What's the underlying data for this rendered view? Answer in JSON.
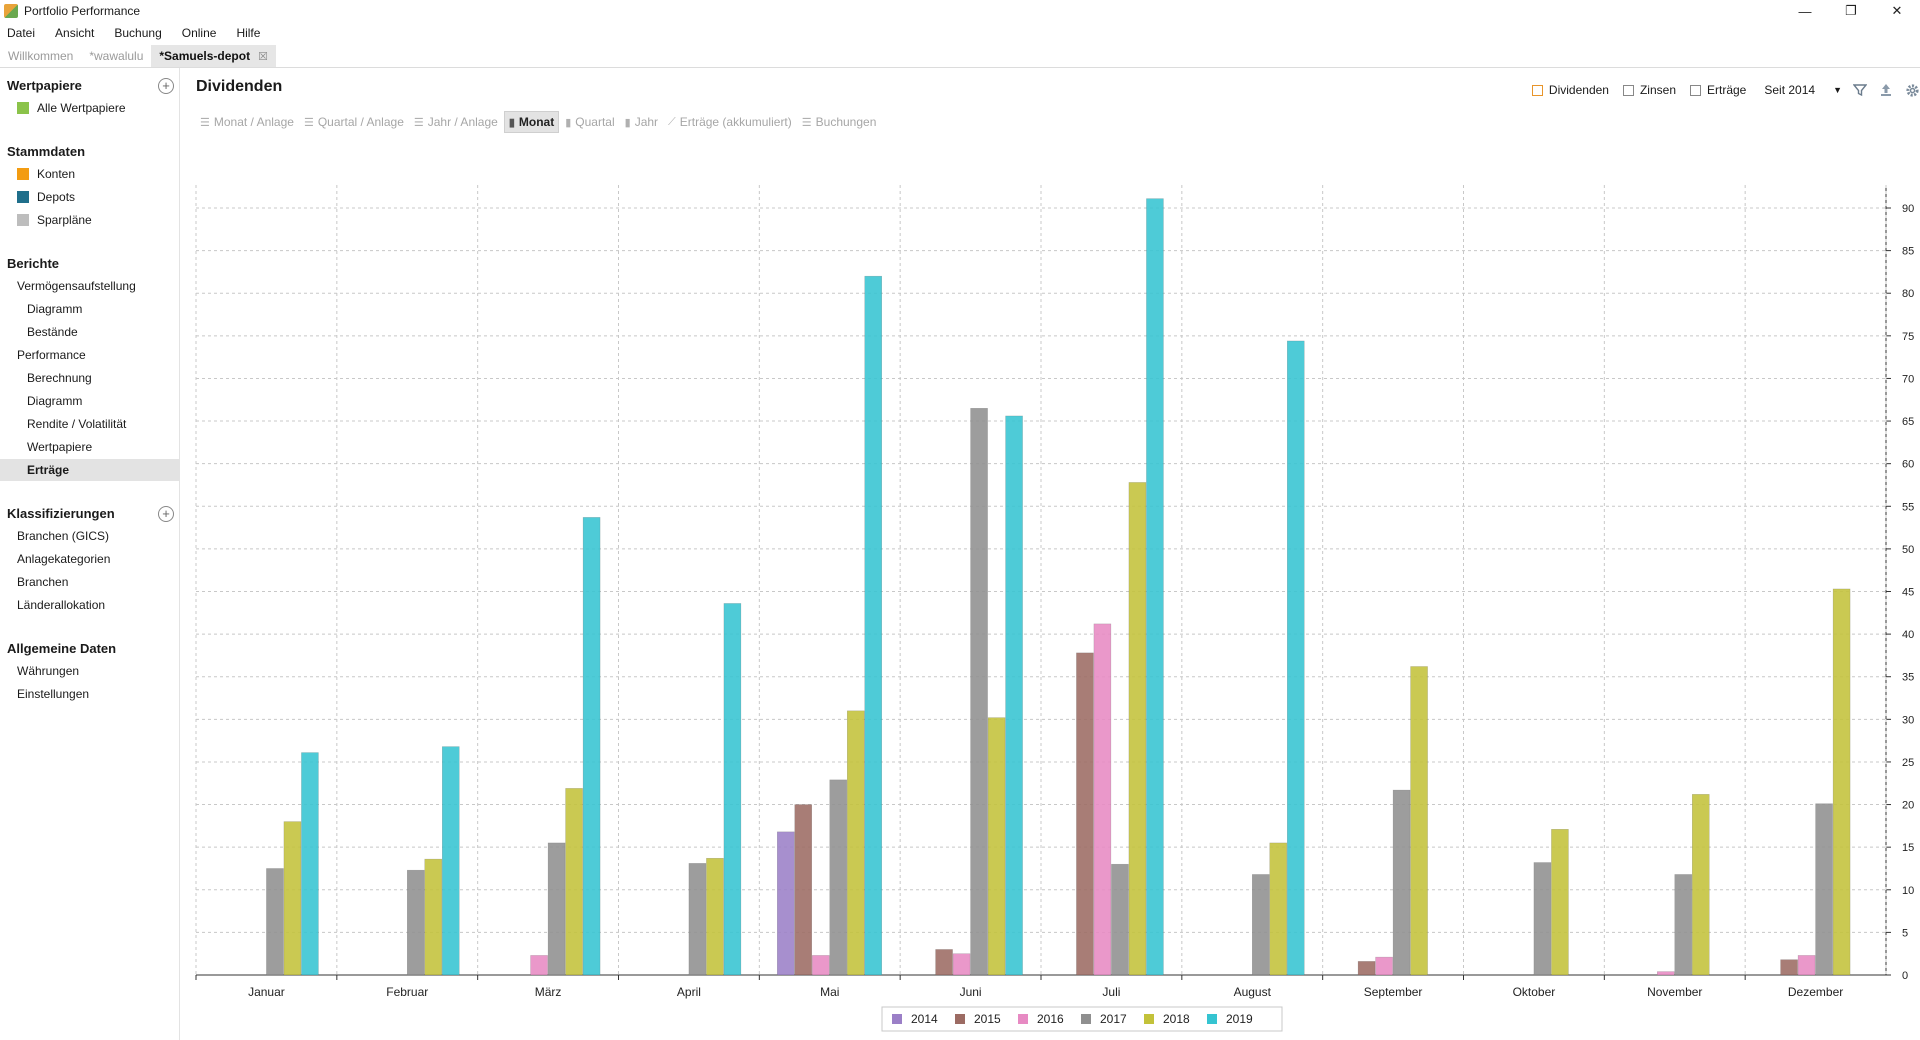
{
  "window": {
    "title": "Portfolio Performance",
    "controls": [
      "—",
      "❐",
      "✕"
    ]
  },
  "menu": [
    "Datei",
    "Ansicht",
    "Buchung",
    "Online",
    "Hilfe"
  ],
  "tabs": [
    "Willkommen",
    "*wawalulu",
    "*Samuels-depot"
  ],
  "tab_close": "☒",
  "sidebar": {
    "wertpapiere": {
      "title": "Wertpapiere",
      "items": [
        "Alle Wertpapiere"
      ]
    },
    "stammdaten": {
      "title": "Stammdaten",
      "items": [
        "Konten",
        "Depots",
        "Sparpläne"
      ]
    },
    "berichte": {
      "title": "Berichte",
      "items": [
        "Vermögensaufstellung",
        "Diagramm",
        "Bestände",
        "Performance",
        "Berechnung",
        "Diagramm",
        "Rendite / Volatilität",
        "Wertpapiere",
        "Erträge"
      ]
    },
    "klassifizierungen": {
      "title": "Klassifizierungen",
      "items": [
        "Branchen (GICS)",
        "Anlagekategorien",
        "Branchen",
        "Länderallokation"
      ]
    },
    "allgemein": {
      "title": "Allgemeine Daten",
      "items": [
        "Währungen",
        "Einstellungen"
      ]
    },
    "icon_colors": {
      "alle_wertpapiere": "#8bc34a",
      "konten": "#f39c12",
      "depots": "#1f6f8b",
      "sparplaene": "#bdbdbd"
    }
  },
  "main": {
    "title": "Dividenden",
    "filters": [
      "Dividenden",
      "Zinsen",
      "Erträge"
    ],
    "period": "Seit 2014",
    "views": [
      "Monat / Anlage",
      "Quartal / Anlage",
      "Jahr / Anlage",
      "Monat",
      "Quartal",
      "Jahr",
      "Erträge (akkumuliert)",
      "Buchungen"
    ],
    "active_view": "Monat"
  },
  "chart_data": {
    "type": "bar",
    "categories": [
      "Januar",
      "Februar",
      "März",
      "April",
      "Mai",
      "Juni",
      "Juli",
      "August",
      "September",
      "Oktober",
      "November",
      "Dezember"
    ],
    "series": [
      {
        "name": "2014",
        "color": "#9b7fc7",
        "values": [
          0,
          0,
          0,
          0,
          16.8,
          0,
          0,
          0,
          0,
          0,
          0,
          0
        ]
      },
      {
        "name": "2015",
        "color": "#9c6b63",
        "values": [
          0,
          0,
          0,
          0,
          20,
          3,
          37.8,
          0,
          1.6,
          0,
          0,
          1.8
        ]
      },
      {
        "name": "2016",
        "color": "#e78ac3",
        "values": [
          0,
          0,
          2.3,
          0,
          2.3,
          2.5,
          41.2,
          0,
          2.1,
          0,
          0.4,
          2.3
        ]
      },
      {
        "name": "2017",
        "color": "#8f8f8f",
        "values": [
          12.5,
          12.3,
          15.5,
          13.1,
          22.9,
          66.5,
          13,
          11.8,
          21.7,
          13.2,
          11.8,
          20.1
        ]
      },
      {
        "name": "2018",
        "color": "#c3c23a",
        "values": [
          18,
          13.6,
          21.9,
          13.7,
          31,
          30.2,
          57.8,
          15.5,
          36.2,
          17.1,
          21.2,
          45.3
        ]
      },
      {
        "name": "2019",
        "color": "#35c4d1",
        "values": [
          26.1,
          26.8,
          53.7,
          43.6,
          82,
          65.6,
          91.1,
          74.4,
          0,
          0,
          0,
          0
        ]
      }
    ],
    "ylim": [
      0,
      92
    ],
    "yticks": [
      0,
      5,
      10,
      15,
      20,
      25,
      30,
      35,
      40,
      45,
      50,
      55,
      60,
      65,
      70,
      75,
      80,
      85,
      90
    ],
    "y_axis_side": "right",
    "grid": true,
    "legend": "bottom"
  }
}
